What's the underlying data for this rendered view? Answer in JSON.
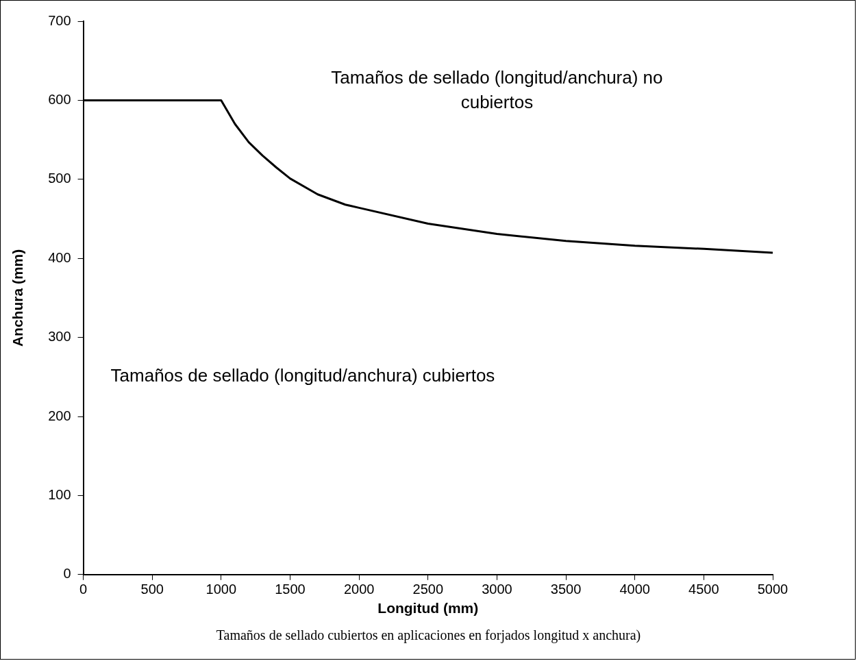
{
  "chart_data": {
    "type": "line",
    "xlabel": "Longitud (mm)",
    "ylabel": "Anchura (mm)",
    "x": [
      0,
      1000,
      1100,
      1200,
      1300,
      1400,
      1500,
      1700,
      1900,
      2000,
      2500,
      3000,
      3500,
      4000,
      4500,
      5000
    ],
    "series": [
      {
        "color": "#000000",
        "values": [
          600,
          600,
          570,
          547,
          530,
          515,
          501,
          481,
          468,
          464,
          444,
          431,
          422,
          416,
          412,
          407
        ]
      }
    ],
    "xlim": [
      0,
      5000
    ],
    "xticks": [
      0,
      500,
      1000,
      1500,
      2000,
      2500,
      3000,
      3500,
      4000,
      4500,
      5000
    ],
    "ylim": [
      0,
      700
    ],
    "yticks": [
      0,
      100,
      200,
      300,
      400,
      500,
      600,
      700
    ],
    "grid": false,
    "legend": false,
    "marker": "none",
    "line_style": "solid",
    "annotations": [
      "Tamaños de sellado (longitud/anchura) no cubiertos",
      "Tamaños de sellado (longitud/anchura) cubiertos",
      "Tamaños de sellado cubiertos en aplicaciones en forjados longitud x anchura)"
    ]
  }
}
